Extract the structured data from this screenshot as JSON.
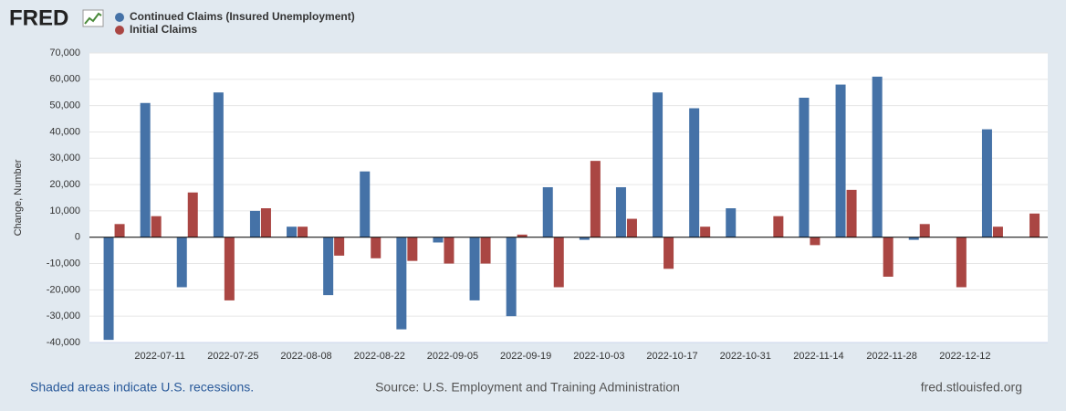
{
  "logo": "FRED",
  "chart_data": {
    "type": "bar",
    "y_label": "Change, Number",
    "categories": [
      null,
      "2022-07-11",
      null,
      "2022-07-25",
      null,
      "2022-08-08",
      null,
      "2022-08-22",
      null,
      "2022-09-05",
      null,
      "2022-09-19",
      null,
      "2022-10-03",
      null,
      "2022-10-17",
      null,
      "2022-10-31",
      null,
      "2022-11-14",
      null,
      "2022-11-28",
      null,
      "2022-12-12",
      null,
      null
    ],
    "series": [
      {
        "name": "Continued Claims (Insured Unemployment)",
        "color": "#4572a7",
        "values": [
          -39000,
          51000,
          -19000,
          55000,
          10000,
          4000,
          -22000,
          25000,
          -35000,
          -2000,
          -24000,
          -30000,
          19000,
          -1000,
          19000,
          55000,
          49000,
          11000,
          null,
          53000,
          58000,
          61000,
          -1000,
          null,
          41000,
          null
        ]
      },
      {
        "name": "Initial Claims",
        "color": "#aa4643",
        "values": [
          5000,
          8000,
          17000,
          -24000,
          11000,
          4000,
          -7000,
          -8000,
          -9000,
          -10000,
          -10000,
          1000,
          -19000,
          29000,
          7000,
          -12000,
          4000,
          null,
          8000,
          -3000,
          18000,
          -15000,
          5000,
          -19000,
          4000,
          9000
        ]
      }
    ],
    "ylim": [
      -40000,
      70000
    ],
    "yticks": [
      {
        "value": -40000,
        "label": "-40,000"
      },
      {
        "value": -30000,
        "label": "-30,000"
      },
      {
        "value": -20000,
        "label": "-20,000"
      },
      {
        "value": -10000,
        "label": "-10,000"
      },
      0,
      {
        "value": 10000,
        "label": "10,000"
      },
      {
        "value": 20000,
        "label": "20,000"
      },
      {
        "value": 30000,
        "label": "30,000"
      },
      {
        "value": 40000,
        "label": "40,000"
      },
      {
        "value": 50000,
        "label": "50,000"
      },
      {
        "value": 60000,
        "label": "60,000"
      },
      {
        "value": 70000,
        "label": "70,000"
      }
    ],
    "grid": true
  },
  "footer": {
    "recessions": "Shaded areas indicate U.S. recessions.",
    "source": "Source: U.S. Employment and Training Administration",
    "site": "fred.stlouisfed.org"
  }
}
